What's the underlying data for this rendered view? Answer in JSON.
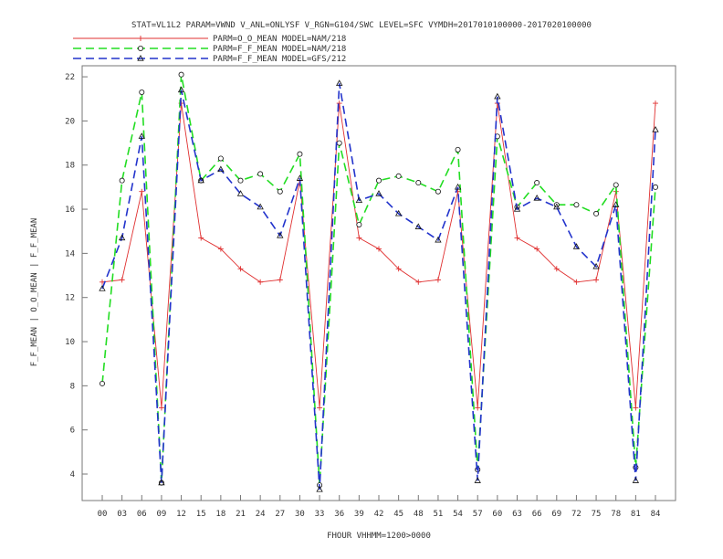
{
  "chart_data": {
    "type": "line",
    "title": "STAT=VL1L2 PARAM=VWND V_ANL=ONLYSF V_RGN=G104/SWC LEVEL=SFC VYMDH=2017010100000-2017020100000",
    "xlabel": "FHOUR VHHMM=1200>0000",
    "ylabel": "F_F_MEAN | O_O_MEAN | F_F_MEAN",
    "categories": [
      "00",
      "03",
      "06",
      "09",
      "12",
      "15",
      "18",
      "21",
      "24",
      "27",
      "30",
      "33",
      "36",
      "39",
      "42",
      "45",
      "48",
      "51",
      "54",
      "57",
      "60",
      "63",
      "66",
      "69",
      "72",
      "75",
      "78",
      "81",
      "84"
    ],
    "ylim": [
      2.8,
      22.5
    ],
    "yticks": [
      4,
      6,
      8,
      10,
      12,
      14,
      16,
      18,
      20,
      22
    ],
    "grid": false,
    "legend_position": "top-left above plot",
    "series": [
      {
        "name": "PARM=O_O_MEAN MODEL=NAM/218",
        "color": "#e03030",
        "style": "solid",
        "marker": "+",
        "values": [
          12.7,
          12.8,
          16.8,
          7.0,
          20.8,
          14.7,
          14.2,
          13.3,
          12.7,
          12.8,
          17.3,
          7.0,
          20.8,
          14.7,
          14.2,
          13.3,
          12.7,
          12.8,
          16.8,
          7.0,
          20.8,
          14.7,
          14.2,
          13.3,
          12.7,
          12.8,
          16.8,
          7.0,
          20.8
        ]
      },
      {
        "name": "PARM=F_F_MEAN MODEL=NAM/218",
        "color": "#22dd22",
        "style": "dashed",
        "marker": "o",
        "values": [
          8.1,
          17.3,
          21.3,
          3.6,
          22.1,
          17.3,
          18.3,
          17.3,
          17.6,
          16.8,
          18.5,
          3.5,
          19.0,
          15.3,
          17.3,
          17.5,
          17.2,
          16.8,
          18.7,
          4.2,
          19.3,
          16.1,
          17.2,
          16.2,
          16.2,
          15.8,
          17.1,
          4.3,
          17.0
        ]
      },
      {
        "name": "PARM=F_F_MEAN MODEL=GFS/212",
        "color": "#2233cc",
        "style": "dashed",
        "marker": "triangle",
        "values": [
          12.4,
          14.7,
          19.3,
          3.6,
          21.4,
          17.3,
          17.8,
          16.7,
          16.1,
          14.8,
          17.4,
          3.3,
          21.7,
          16.4,
          16.7,
          15.8,
          15.2,
          14.6,
          17.0,
          3.7,
          21.1,
          16.0,
          16.5,
          16.1,
          14.3,
          13.4,
          16.2,
          3.7,
          19.6
        ]
      }
    ]
  }
}
